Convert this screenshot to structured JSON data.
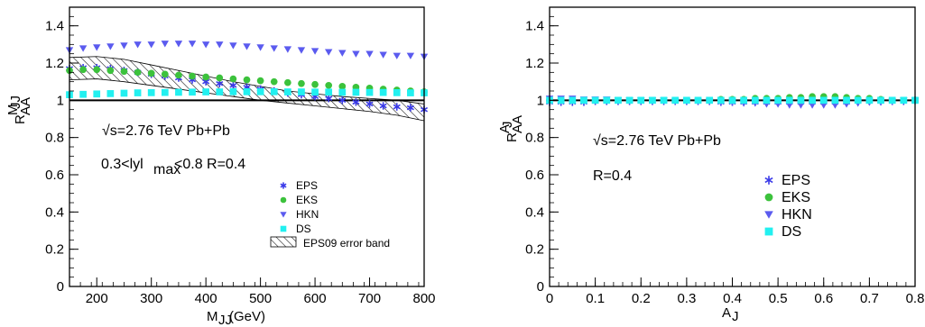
{
  "chart_data": [
    {
      "type": "scatter",
      "xlabel": "M_JJ(GeV)",
      "ylabel": "R_AA^{M_JJ}",
      "xlim": [
        150,
        800
      ],
      "ylim": [
        0,
        1.5
      ],
      "x_ticks": [
        "200",
        "300",
        "400",
        "500",
        "600",
        "700",
        "800"
      ],
      "y_ticks": [
        "0",
        "0.2",
        "0.4",
        "0.6",
        "0.8",
        "1",
        "1.2",
        "1.4"
      ],
      "annotations": [
        "√s=2.76 TeV  Pb+Pb",
        "0.3<lyl_max<0.8  R=0.4"
      ],
      "legend_position": "center-right",
      "reference_line_y": 1.0,
      "x": [
        150,
        175,
        200,
        225,
        250,
        275,
        300,
        325,
        350,
        375,
        400,
        425,
        450,
        475,
        500,
        525,
        550,
        575,
        600,
        625,
        650,
        675,
        700,
        725,
        750,
        775,
        800
      ],
      "series": [
        {
          "name": "EPS",
          "color": "#3a3ae8",
          "marker": "star",
          "values": [
            1.17,
            1.175,
            1.175,
            1.17,
            1.16,
            1.15,
            1.14,
            1.13,
            1.12,
            1.11,
            1.1,
            1.09,
            1.08,
            1.07,
            1.06,
            1.05,
            1.04,
            1.03,
            1.02,
            1.01,
            1.0,
            0.99,
            0.98,
            0.97,
            0.965,
            0.96,
            0.95
          ]
        },
        {
          "name": "EKS",
          "color": "#3cc23c",
          "marker": "circle",
          "values": [
            1.16,
            1.165,
            1.165,
            1.16,
            1.155,
            1.15,
            1.145,
            1.14,
            1.135,
            1.13,
            1.125,
            1.12,
            1.115,
            1.11,
            1.105,
            1.1,
            1.095,
            1.09,
            1.085,
            1.08,
            1.075,
            1.07,
            1.065,
            1.06,
            1.055,
            1.05,
            1.045
          ]
        },
        {
          "name": "HKN",
          "color": "#5b5bef",
          "marker": "triangle-down",
          "values": [
            1.27,
            1.28,
            1.285,
            1.29,
            1.295,
            1.3,
            1.3,
            1.305,
            1.305,
            1.305,
            1.3,
            1.3,
            1.295,
            1.29,
            1.285,
            1.28,
            1.275,
            1.27,
            1.265,
            1.26,
            1.255,
            1.25,
            1.25,
            1.245,
            1.24,
            1.24,
            1.235
          ]
        },
        {
          "name": "DS",
          "color": "#22f0f0",
          "marker": "square",
          "values": [
            1.03,
            1.032,
            1.034,
            1.036,
            1.038,
            1.04,
            1.041,
            1.042,
            1.043,
            1.044,
            1.045,
            1.045,
            1.046,
            1.046,
            1.046,
            1.046,
            1.045,
            1.045,
            1.044,
            1.044,
            1.043,
            1.043,
            1.042,
            1.042,
            1.041,
            1.04,
            1.04
          ]
        }
      ],
      "error_band": {
        "name": "EPS09 error band",
        "x": [
          150,
          200,
          250,
          300,
          350,
          400,
          450,
          500,
          550,
          600,
          650,
          700,
          750,
          800
        ],
        "upper": [
          1.23,
          1.235,
          1.22,
          1.19,
          1.16,
          1.13,
          1.1,
          1.075,
          1.05,
          1.035,
          1.02,
          1.01,
          1.0,
          0.98
        ],
        "lower": [
          1.11,
          1.115,
          1.1,
          1.08,
          1.06,
          1.04,
          1.02,
          1.0,
          0.985,
          0.97,
          0.955,
          0.94,
          0.92,
          0.89
        ]
      },
      "legend": [
        "EPS",
        "EKS",
        "HKN",
        "DS",
        "EPS09 error band"
      ]
    },
    {
      "type": "scatter",
      "xlabel": "A_J",
      "ylabel": "R_AA^{A_J}",
      "xlim": [
        0,
        0.8
      ],
      "ylim": [
        0,
        1.5
      ],
      "x_ticks": [
        "0",
        "0.1",
        "0.2",
        "0.3",
        "0.4",
        "0.5",
        "0.6",
        "0.7",
        "0.8"
      ],
      "y_ticks": [
        "0",
        "0.2",
        "0.4",
        "0.6",
        "0.8",
        "1",
        "1.2",
        "1.4"
      ],
      "annotations": [
        "√s=2.76 TeV   Pb+Pb",
        "R=0.4"
      ],
      "legend_position": "center-right",
      "reference_line_y": 1.0,
      "x": [
        0.0,
        0.025,
        0.05,
        0.075,
        0.1,
        0.125,
        0.15,
        0.175,
        0.2,
        0.225,
        0.25,
        0.275,
        0.3,
        0.325,
        0.35,
        0.375,
        0.4,
        0.425,
        0.45,
        0.475,
        0.5,
        0.525,
        0.55,
        0.575,
        0.6,
        0.625,
        0.65,
        0.675,
        0.7,
        0.725,
        0.75,
        0.775,
        0.8
      ],
      "series": [
        {
          "name": "EPS",
          "color": "#3a3ae8",
          "marker": "star",
          "values": [
            0.99,
            0.99,
            0.99,
            0.99,
            0.995,
            0.995,
            0.995,
            0.995,
            0.995,
            0.995,
            0.995,
            0.995,
            0.995,
            0.995,
            0.995,
            0.99,
            0.99,
            0.99,
            0.99,
            0.99,
            0.99,
            0.99,
            0.99,
            0.99,
            0.99,
            0.99,
            0.99,
            0.995,
            0.995,
            0.995,
            0.995,
            0.995,
            1.0
          ]
        },
        {
          "name": "EKS",
          "color": "#3cc23c",
          "marker": "circle",
          "values": [
            1.0,
            1.0,
            1.0,
            1.0,
            1.0,
            1.0,
            1.0,
            1.0,
            1.0,
            1.0,
            1.0,
            1.0,
            1.0,
            1.0,
            1.0,
            1.005,
            1.005,
            1.005,
            1.01,
            1.01,
            1.01,
            1.015,
            1.015,
            1.02,
            1.02,
            1.02,
            1.015,
            1.01,
            1.01,
            1.005,
            1.0,
            1.0,
            1.0
          ]
        },
        {
          "name": "HKN",
          "color": "#5b5bef",
          "marker": "triangle-down",
          "values": [
            1.01,
            1.01,
            1.01,
            1.005,
            1.005,
            1.005,
            1.0,
            1.0,
            1.0,
            1.0,
            1.0,
            0.995,
            0.995,
            0.995,
            0.995,
            0.99,
            0.99,
            0.985,
            0.985,
            0.98,
            0.98,
            0.975,
            0.975,
            0.975,
            0.975,
            0.975,
            0.98,
            0.985,
            0.99,
            0.99,
            0.995,
            1.0,
            1.0
          ]
        },
        {
          "name": "DS",
          "color": "#22f0f0",
          "marker": "square",
          "values": [
            1.0,
            1.0,
            1.0,
            1.0,
            1.0,
            1.0,
            1.0,
            1.0,
            1.0,
            1.0,
            1.0,
            1.0,
            1.0,
            1.0,
            1.0,
            1.0,
            1.0,
            1.0,
            1.0,
            1.0,
            1.0,
            1.0,
            1.0,
            1.0,
            1.0,
            1.0,
            1.0,
            1.0,
            1.0,
            1.0,
            1.0,
            1.0,
            1.0
          ]
        }
      ],
      "legend": [
        "EPS",
        "EKS",
        "HKN",
        "DS"
      ]
    }
  ]
}
